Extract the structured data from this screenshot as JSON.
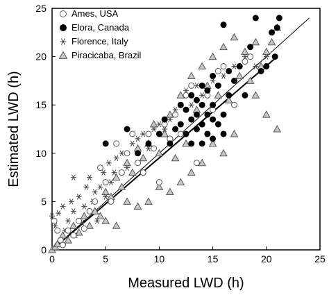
{
  "chart_data": {
    "type": "scatter",
    "xlabel": "Measured LWD (h)",
    "ylabel": "Estimated LWD (h)",
    "xlim": [
      0,
      25
    ],
    "ylim": [
      0,
      25
    ],
    "xticks": [
      "0",
      "5",
      "10",
      "15",
      "20",
      "25"
    ],
    "yticks": [
      "0",
      "5",
      "10",
      "15",
      "20",
      "25"
    ],
    "grid": false,
    "legend_position": "top-left",
    "lines": [
      {
        "kind": "1:1",
        "x": [
          0,
          24
        ],
        "y": [
          0,
          24
        ]
      },
      {
        "kind": "regression",
        "x": [
          0,
          21
        ],
        "y": [
          0,
          20
        ]
      }
    ],
    "series": [
      {
        "name": "Ames, USA",
        "marker": "circle-open",
        "points": [
          [
            0.2,
            3
          ],
          [
            0.5,
            2
          ],
          [
            0.8,
            1
          ],
          [
            1,
            0.5
          ],
          [
            1.5,
            2
          ],
          [
            2,
            1.5
          ],
          [
            2.5,
            3
          ],
          [
            3,
            2.2
          ],
          [
            3.5,
            4
          ],
          [
            4,
            5
          ],
          [
            4.5,
            8.5
          ],
          [
            5,
            7
          ],
          [
            5.5,
            5
          ],
          [
            6,
            11
          ],
          [
            6.5,
            8
          ],
          [
            7,
            10
          ],
          [
            7.5,
            12
          ],
          [
            8,
            9
          ],
          [
            8.5,
            8
          ],
          [
            9,
            12
          ],
          [
            9.5,
            10.5
          ],
          [
            10,
            7
          ],
          [
            10.5,
            13
          ],
          [
            11,
            11.5
          ],
          [
            11.5,
            14
          ],
          [
            12,
            12
          ],
          [
            12.5,
            16
          ],
          [
            13,
            17
          ],
          [
            13.5,
            9
          ],
          [
            14,
            13
          ],
          [
            14.5,
            16
          ],
          [
            15,
            14.5
          ],
          [
            15.5,
            18.5
          ],
          [
            16,
            19
          ],
          [
            17,
            15
          ],
          [
            18,
            19.5
          ],
          [
            18.5,
            20
          ]
        ]
      },
      {
        "name": "Elora, Canada",
        "marker": "circle-filled",
        "points": [
          [
            5,
            11
          ],
          [
            7,
            12.5
          ],
          [
            8,
            10
          ],
          [
            9,
            11
          ],
          [
            10,
            12
          ],
          [
            10.5,
            13.5
          ],
          [
            11,
            11
          ],
          [
            11.5,
            12.5
          ],
          [
            12,
            13
          ],
          [
            12,
            15
          ],
          [
            12.5,
            12
          ],
          [
            12.5,
            14.5
          ],
          [
            13,
            11
          ],
          [
            13,
            13.5
          ],
          [
            13,
            16
          ],
          [
            13.5,
            12.5
          ],
          [
            13.5,
            14
          ],
          [
            13.5,
            15.5
          ],
          [
            14,
            11
          ],
          [
            14,
            13
          ],
          [
            14,
            15
          ],
          [
            14,
            17
          ],
          [
            14.5,
            12
          ],
          [
            14.5,
            14
          ],
          [
            14.5,
            16.5
          ],
          [
            15,
            11.5
          ],
          [
            15,
            13.5
          ],
          [
            15,
            15
          ],
          [
            15,
            18
          ],
          [
            15.5,
            13
          ],
          [
            15.5,
            17
          ],
          [
            16,
            12
          ],
          [
            16,
            14
          ],
          [
            16,
            23.3
          ],
          [
            16.5,
            16
          ],
          [
            16.5,
            18.5
          ],
          [
            17,
            17.5
          ],
          [
            17.5,
            19
          ],
          [
            18,
            16
          ],
          [
            18.5,
            21
          ],
          [
            19,
            24
          ],
          [
            19.5,
            18.5
          ],
          [
            20,
            19
          ],
          [
            20.5,
            22.5
          ],
          [
            20.8,
            20
          ],
          [
            21,
            23
          ],
          [
            21.2,
            24
          ]
        ]
      },
      {
        "name": "Florence, Italy",
        "marker": "star",
        "points": [
          [
            0,
            3.5
          ],
          [
            0.3,
            2.5
          ],
          [
            0.6,
            3.8
          ],
          [
            0.8,
            1
          ],
          [
            1,
            4.5
          ],
          [
            1.2,
            2
          ],
          [
            1.5,
            3
          ],
          [
            1.8,
            5
          ],
          [
            2,
            7.5
          ],
          [
            2,
            4
          ],
          [
            2.2,
            1.5
          ],
          [
            2.5,
            5.5
          ],
          [
            2.8,
            2.8
          ],
          [
            3,
            4.5
          ],
          [
            3.2,
            6.5
          ],
          [
            3.5,
            7.5
          ],
          [
            3.8,
            5
          ],
          [
            4,
            6
          ],
          [
            4.2,
            3
          ],
          [
            4.5,
            6.5
          ],
          [
            4.8,
            8
          ],
          [
            5,
            5.5
          ],
          [
            5.3,
            9
          ],
          [
            5.5,
            7
          ],
          [
            5.8,
            8
          ],
          [
            6,
            9.5
          ],
          [
            6.5,
            10
          ],
          [
            7,
            8.5
          ],
          [
            7.5,
            11
          ],
          [
            8,
            11.5
          ],
          [
            8.5,
            12
          ],
          [
            9,
            10.5
          ],
          [
            9.5,
            12.5
          ],
          [
            10,
            13
          ],
          [
            10.5,
            12.5
          ],
          [
            11,
            13.5
          ],
          [
            11.5,
            14.5
          ],
          [
            12,
            15
          ],
          [
            12.5,
            16.5
          ],
          [
            13,
            15
          ],
          [
            13.5,
            17
          ],
          [
            14,
            16
          ],
          [
            15,
            17.5
          ],
          [
            16,
            18
          ],
          [
            17,
            19
          ],
          [
            18,
            20
          ],
          [
            19,
            19
          ],
          [
            20,
            20
          ]
        ]
      },
      {
        "name": "Piracicaba, Brazil",
        "marker": "triangle-open",
        "points": [
          [
            0,
            0
          ],
          [
            0.3,
            0.3
          ],
          [
            0.5,
            0.6
          ],
          [
            1,
            1.5
          ],
          [
            1.5,
            1
          ],
          [
            2,
            2.5
          ],
          [
            2.5,
            1.8
          ],
          [
            3,
            3.5
          ],
          [
            3.5,
            2.5
          ],
          [
            4,
            4
          ],
          [
            4.5,
            3.5
          ],
          [
            5,
            6
          ],
          [
            5.5,
            5.5
          ],
          [
            6,
            7.5
          ],
          [
            6.5,
            6.5
          ],
          [
            7,
            9
          ],
          [
            7.5,
            8
          ],
          [
            8,
            10.5
          ],
          [
            8.5,
            9.5
          ],
          [
            9,
            11
          ],
          [
            9.5,
            13
          ],
          [
            10,
            10
          ],
          [
            10.5,
            12
          ],
          [
            11,
            14
          ],
          [
            11.5,
            9.5
          ],
          [
            12,
            16
          ],
          [
            12.5,
            11
          ],
          [
            13,
            18
          ],
          [
            13.5,
            14.5
          ],
          [
            14,
            19
          ],
          [
            14.5,
            17
          ],
          [
            15,
            20
          ],
          [
            15.5,
            16
          ],
          [
            16,
            21
          ],
          [
            16.5,
            15.5
          ],
          [
            17,
            22
          ],
          [
            17.5,
            18
          ],
          [
            18,
            20.5
          ],
          [
            18.5,
            17.5
          ],
          [
            19,
            21.5
          ],
          [
            19.5,
            19
          ],
          [
            20,
            20.5
          ],
          [
            20.5,
            21.5
          ],
          [
            21,
            23
          ],
          [
            21,
            12.5
          ],
          [
            20,
            14
          ],
          [
            19,
            16
          ],
          [
            17,
            12
          ],
          [
            16,
            10
          ],
          [
            15,
            11
          ],
          [
            14,
            9
          ],
          [
            13,
            8
          ],
          [
            12,
            7
          ],
          [
            11,
            6
          ],
          [
            10,
            6.5
          ],
          [
            9,
            5
          ],
          [
            8,
            4.5
          ],
          [
            7,
            5
          ],
          [
            6,
            2.5
          ],
          [
            5,
            3
          ]
        ]
      }
    ]
  }
}
